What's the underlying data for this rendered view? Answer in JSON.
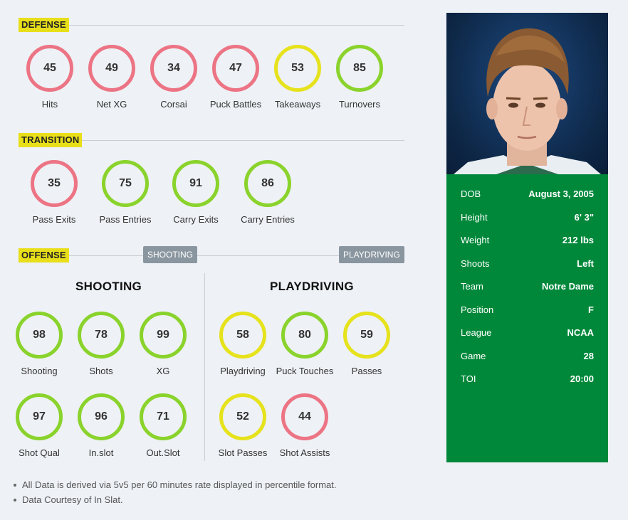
{
  "sections": {
    "defense": "DEFENSE",
    "transition": "TRANSITION",
    "offense": "OFFENSE",
    "shooting_button": "SHOOTING",
    "playdriving_button": "PLAYDRIVING"
  },
  "defense": [
    {
      "label": "Hits",
      "value": "45",
      "color": "red"
    },
    {
      "label": "Net XG",
      "value": "49",
      "color": "red"
    },
    {
      "label": "Corsai",
      "value": "34",
      "color": "red"
    },
    {
      "label": "Puck Battles",
      "value": "47",
      "color": "red"
    },
    {
      "label": "Takeaways",
      "value": "53",
      "color": "yellow"
    },
    {
      "label": "Turnovers",
      "value": "85",
      "color": "green"
    }
  ],
  "transition": [
    {
      "label": "Pass Exits",
      "value": "35",
      "color": "red"
    },
    {
      "label": "Pass Entries",
      "value": "75",
      "color": "green"
    },
    {
      "label": "Carry Exits",
      "value": "91",
      "color": "green"
    },
    {
      "label": "Carry Entries",
      "value": "86",
      "color": "green"
    }
  ],
  "shooting": {
    "title": "SHOOTING",
    "stats": [
      {
        "label": "Shooting",
        "value": "98",
        "color": "green"
      },
      {
        "label": "Shots",
        "value": "78",
        "color": "green"
      },
      {
        "label": "XG",
        "value": "99",
        "color": "green"
      },
      {
        "label": "Shot Qual",
        "value": "97",
        "color": "green"
      },
      {
        "label": "In.slot",
        "value": "96",
        "color": "green"
      },
      {
        "label": "Out.Slot",
        "value": "71",
        "color": "green"
      }
    ]
  },
  "playdriving": {
    "title": "PLAYDRIVING",
    "stats": [
      {
        "label": "Playdriving",
        "value": "58",
        "color": "yellow"
      },
      {
        "label": "Puck Touches",
        "value": "80",
        "color": "green"
      },
      {
        "label": "Passes",
        "value": "59",
        "color": "yellow"
      },
      {
        "label": "Slot Passes",
        "value": "52",
        "color": "yellow"
      },
      {
        "label": "Shot Assists",
        "value": "44",
        "color": "red"
      }
    ]
  },
  "notes": [
    "All Data is derived via 5v5 per 60 minutes rate displayed in percentile format.",
    "Data Courtesy of In Slat."
  ],
  "player": {
    "rows": [
      {
        "k": "DOB",
        "v": "August 3, 2005"
      },
      {
        "k": "Height",
        "v": "6' 3\""
      },
      {
        "k": "Weight",
        "v": "212 lbs"
      },
      {
        "k": "Shoots",
        "v": "Left"
      },
      {
        "k": "Team",
        "v": "Notre Dame"
      },
      {
        "k": "Position",
        "v": "F"
      },
      {
        "k": "League",
        "v": "NCAA"
      },
      {
        "k": "Game",
        "v": "28"
      },
      {
        "k": "TOI",
        "v": "20:00"
      }
    ]
  },
  "colors": {
    "red": "#ec7484",
    "yellow": "#e6e21c",
    "green": "#8ad32c",
    "card": "#00883a",
    "tag": "#e8df1a"
  }
}
